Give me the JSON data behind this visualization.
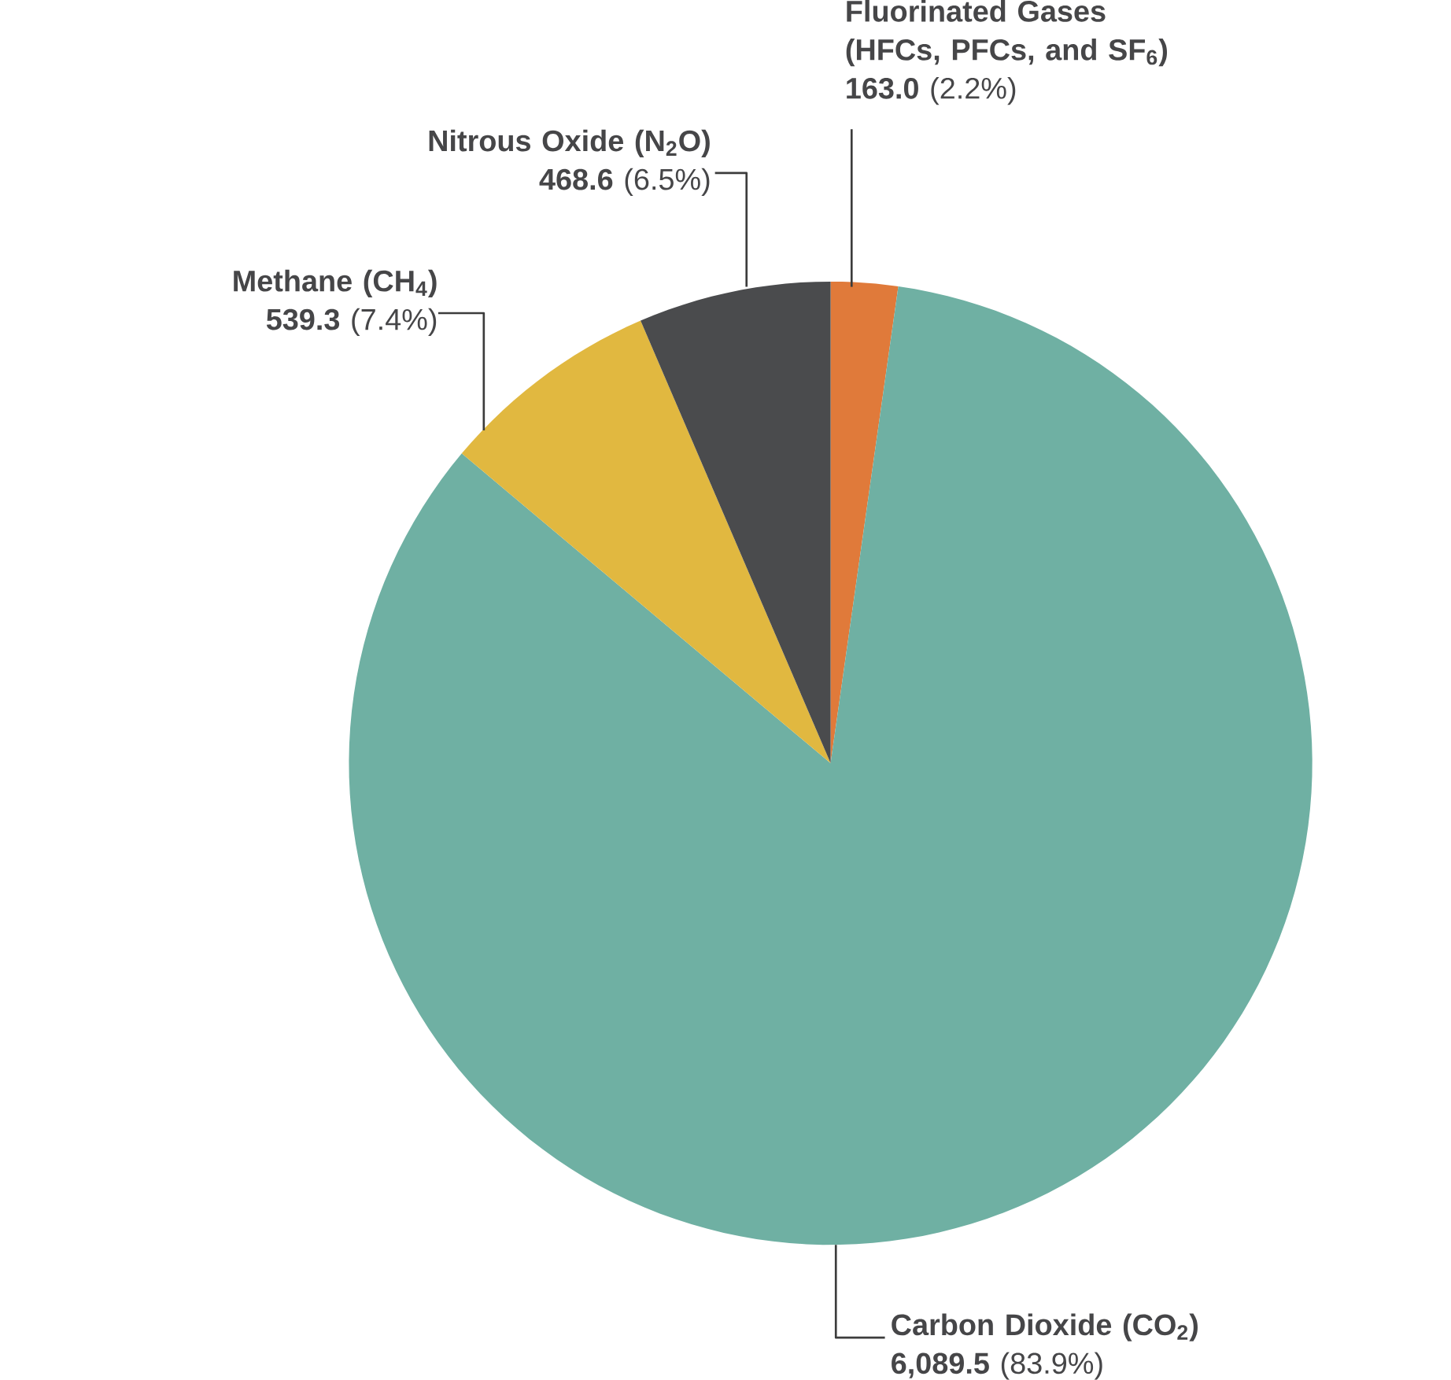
{
  "chart_data": {
    "type": "pie",
    "categories": [
      "Fluorinated Gases (HFCs, PFCs, and SF$_{6}$)",
      "Carbon Dioxide (CO$_{2}$)",
      "Methane (CH$_{4}$)",
      "Nitrous Oxide (N$_{2}$O)"
    ],
    "values": [
      163.0,
      6089.5,
      539.3,
      468.6
    ],
    "colors": [
      "#e07a3a",
      "#6fb0a3",
      "#e1b840",
      "#4a4b4d"
    ],
    "value_labels": [
      "**163.0** (2.2%)",
      "**6,089.5** (83.9%)",
      "**539.3** (7.4%)",
      "**468.6** (6.5%)"
    ]
  }
}
